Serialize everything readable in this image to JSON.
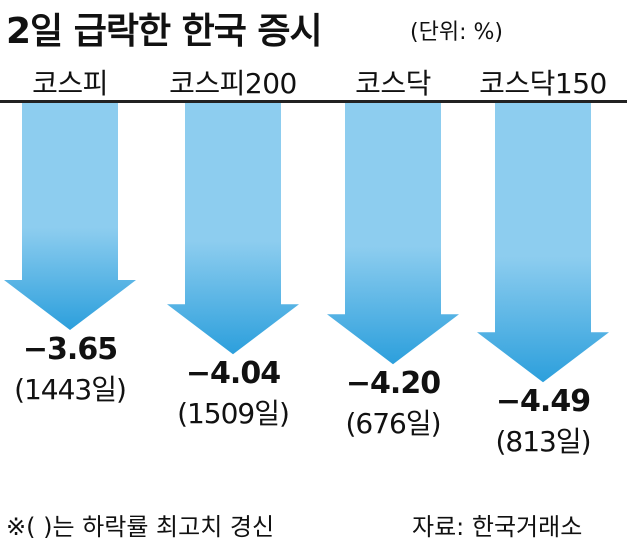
{
  "title": "2일 급락한 한국 증시",
  "unit": "(단위: %)",
  "footnote": "※(   )는 하락률 최고치 경신",
  "source": "자료: 한국거래소",
  "colors": {
    "arrow_top": "#8dcdef",
    "arrow_bottom": "#2c9fdc",
    "rule": "#222222"
  },
  "chart_data": {
    "type": "bar",
    "categories": [
      "코스피",
      "코스피200",
      "코스닥",
      "코스닥150"
    ],
    "values": [
      -3.65,
      -4.04,
      -4.2,
      -4.49
    ],
    "value_labels": [
      "−3.65",
      "−4.04",
      "−4.20",
      "−4.49"
    ],
    "annotations": [
      "(1443일)",
      "(1509일)",
      "(676일)",
      "(813일)"
    ],
    "title": "2일 급락한 한국 증시",
    "ylabel": "",
    "grid": false,
    "legend": "none"
  }
}
